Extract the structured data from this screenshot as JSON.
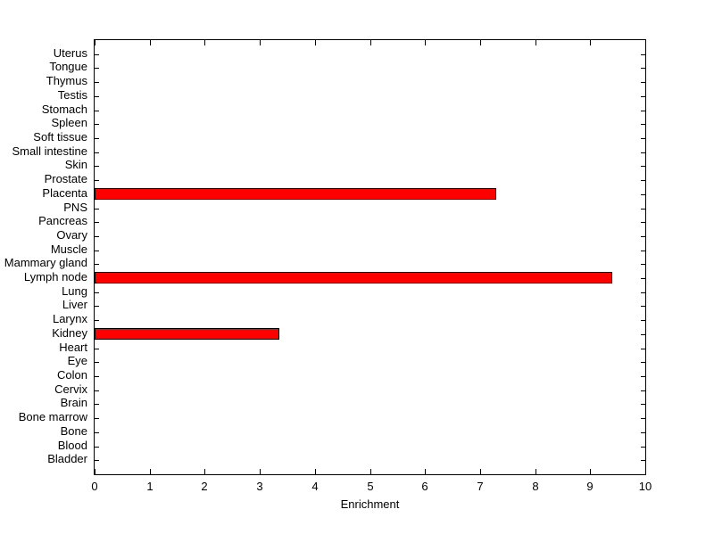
{
  "chart_data": {
    "type": "bar",
    "orientation": "horizontal",
    "title": "",
    "xlabel": "Enrichment",
    "ylabel": "",
    "categories_order": "top-to-bottom",
    "categories": [
      "Uterus",
      "Tongue",
      "Thymus",
      "Testis",
      "Stomach",
      "Spleen",
      "Soft tissue",
      "Small intestine",
      "Skin",
      "Prostate",
      "Placenta",
      "PNS",
      "Pancreas",
      "Ovary",
      "Muscle",
      "Mammary gland",
      "Lymph node",
      "Lung",
      "Liver",
      "Larynx",
      "Kidney",
      "Heart",
      "Eye",
      "Colon",
      "Cervix",
      "Brain",
      "Bone marrow",
      "Bone",
      "Blood",
      "Bladder"
    ],
    "values": [
      0,
      0,
      0,
      0,
      0,
      0,
      0,
      0,
      0,
      0,
      7.3,
      0,
      0,
      0,
      0,
      0,
      9.4,
      0,
      0,
      0,
      3.35,
      0,
      0,
      0,
      0,
      0,
      0,
      0,
      0,
      0
    ],
    "xlim": [
      0,
      10
    ],
    "xticks": [
      0,
      1,
      2,
      3,
      4,
      5,
      6,
      7,
      8,
      9,
      10
    ],
    "grid": false,
    "legend": null,
    "colors": {
      "bar_fill": "#ff0000",
      "bar_edge": "#000000",
      "axis": "#000000",
      "text": "#000000",
      "background": "#ffffff"
    }
  }
}
